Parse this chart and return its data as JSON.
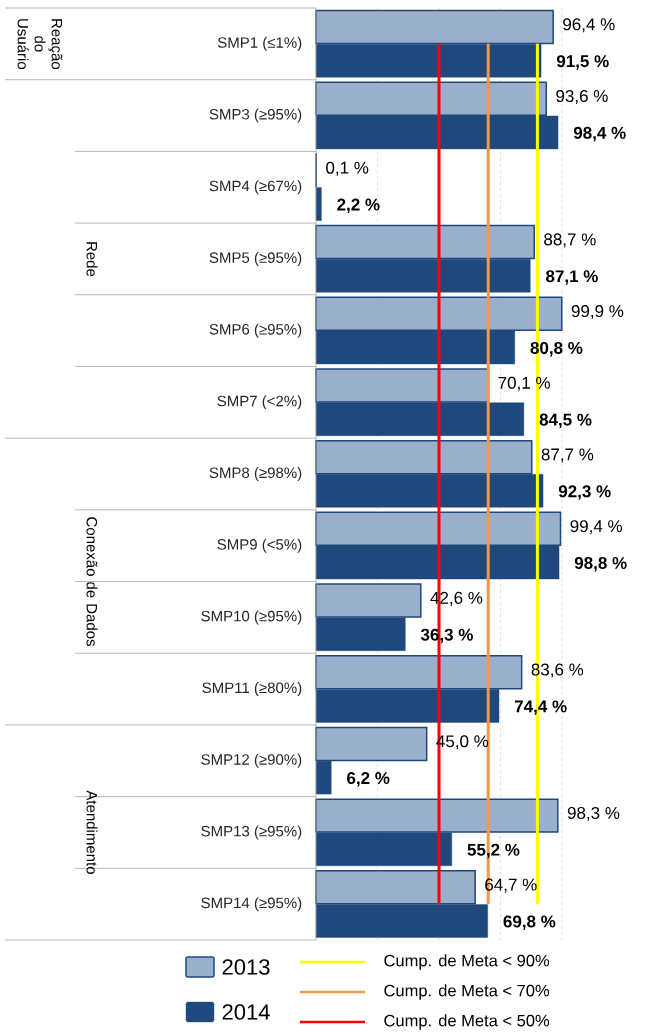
{
  "chart_data": {
    "type": "bar",
    "orientation": "horizontal",
    "categories": [
      "SMP1 (≤1%)",
      "SMP3 (≥95%)",
      "SMP4 (≥67%)",
      "SMP5 (≥95%)",
      "SMP6 (≥95%)",
      "SMP7 (<2%)",
      "SMP8 (≥98%)",
      "SMP9 (<5%)",
      "SMP10 (≥95%)",
      "SMP11 (≥80%)",
      "SMP12 (≥90%)",
      "SMP13 (≥95%)",
      "SMP14 (≥95%)"
    ],
    "series": [
      {
        "name": "2013",
        "color": "#9aafcc",
        "values": [
          96.4,
          93.6,
          0.1,
          88.7,
          99.9,
          70.1,
          87.7,
          99.4,
          42.6,
          83.6,
          45.0,
          98.3,
          64.7
        ],
        "value_labels": [
          "96,4 %",
          "93,6 %",
          "0,1 %",
          "88,7 %",
          "99,9 %",
          "70,1 %",
          "87,7 %",
          "99,4 %",
          "42,6 %",
          "83,6 %",
          "45,0 %",
          "98,3 %",
          "64,7 %"
        ]
      },
      {
        "name": "2014",
        "color": "#1f497d",
        "values": [
          91.5,
          98.4,
          2.2,
          87.1,
          80.8,
          84.5,
          92.3,
          98.8,
          36.3,
          74.4,
          6.2,
          55.2,
          69.8
        ],
        "value_labels": [
          "91,5 %",
          "98,4 %",
          "2,2 %",
          "87,1 %",
          "80,8 %",
          "84,5 %",
          "92,3 %",
          "98,8 %",
          "36,3 %",
          "74,4 %",
          "6,2 %",
          "55,2 %",
          "69,8 %"
        ]
      }
    ],
    "ref_lines": [
      {
        "axis": "x",
        "value": 90,
        "label": "Cump. de Meta < 90%",
        "color": "#ffff00"
      },
      {
        "axis": "x",
        "value": 70,
        "label": "Cump. de Meta < 70%",
        "color": "#f79646"
      },
      {
        "axis": "x",
        "value": 50,
        "label": "Cump. de Meta < 50%",
        "color": "#ff0000"
      }
    ],
    "annotations": [
      "Reação do Usuário",
      "Rede",
      "Conexão de Dados",
      "Atendimento"
    ],
    "xlim": [
      0,
      100
    ],
    "xticks": [
      {
        "value": 25,
        "label": null
      },
      {
        "value": 50,
        "label": null
      },
      {
        "value": 75,
        "label": null
      },
      {
        "value": 100,
        "label": null
      }
    ],
    "grid": "x",
    "tick_labels": "y",
    "legend": "bottom"
  }
}
